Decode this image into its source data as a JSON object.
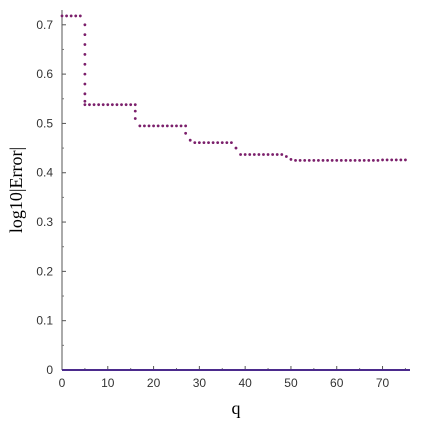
{
  "chart_data": {
    "type": "scatter",
    "title": "",
    "xlabel": "q",
    "ylabel": "log10|Error|",
    "xlim": [
      0,
      76
    ],
    "ylim": [
      0,
      0.73
    ],
    "xticks": [
      0,
      10,
      20,
      30,
      40,
      50,
      60,
      70
    ],
    "yticks": [
      0,
      0.1,
      0.2,
      0.3,
      0.4,
      0.5,
      0.6,
      0.7
    ],
    "xtick_labels": [
      "0",
      "10",
      "20",
      "30",
      "40",
      "50",
      "60",
      "70"
    ],
    "ytick_labels": [
      "0",
      "0.1",
      "0.2",
      "0.3",
      "0.4",
      "0.5",
      "0.6",
      "0.7"
    ],
    "grid": false,
    "series": [
      {
        "color": "#7b1f6b",
        "marker": "dot",
        "x": [
          0,
          1,
          2,
          3,
          4,
          5,
          5,
          5,
          5,
          5,
          5,
          5,
          5,
          5,
          5,
          6,
          7,
          8,
          9,
          10,
          11,
          12,
          13,
          14,
          15,
          16,
          16,
          16,
          17,
          18,
          19,
          20,
          21,
          22,
          23,
          24,
          25,
          26,
          27,
          27,
          28,
          29,
          30,
          31,
          32,
          33,
          34,
          35,
          36,
          37,
          38,
          39,
          40,
          41,
          42,
          43,
          44,
          45,
          46,
          47,
          48,
          49,
          50,
          51,
          52,
          53,
          54,
          55,
          56,
          57,
          58,
          59,
          60,
          61,
          62,
          63,
          64,
          65,
          66,
          67,
          68,
          69,
          70,
          71,
          72,
          73,
          74,
          75
        ],
        "y": [
          0.718,
          0.718,
          0.718,
          0.718,
          0.718,
          0.7,
          0.68,
          0.66,
          0.64,
          0.62,
          0.6,
          0.58,
          0.56,
          0.545,
          0.538,
          0.538,
          0.538,
          0.538,
          0.538,
          0.538,
          0.538,
          0.538,
          0.538,
          0.538,
          0.538,
          0.538,
          0.525,
          0.51,
          0.495,
          0.495,
          0.495,
          0.495,
          0.495,
          0.495,
          0.495,
          0.495,
          0.495,
          0.495,
          0.495,
          0.48,
          0.466,
          0.461,
          0.461,
          0.461,
          0.461,
          0.461,
          0.461,
          0.461,
          0.461,
          0.461,
          0.45,
          0.437,
          0.437,
          0.437,
          0.437,
          0.437,
          0.437,
          0.437,
          0.437,
          0.437,
          0.437,
          0.433,
          0.427,
          0.425,
          0.425,
          0.425,
          0.425,
          0.425,
          0.425,
          0.425,
          0.425,
          0.425,
          0.425,
          0.425,
          0.425,
          0.425,
          0.425,
          0.425,
          0.425,
          0.425,
          0.425,
          0.425,
          0.426,
          0.426,
          0.426,
          0.426,
          0.426,
          0.426
        ]
      }
    ],
    "baseline": {
      "y": 0,
      "color": "#4b2a8c"
    }
  }
}
